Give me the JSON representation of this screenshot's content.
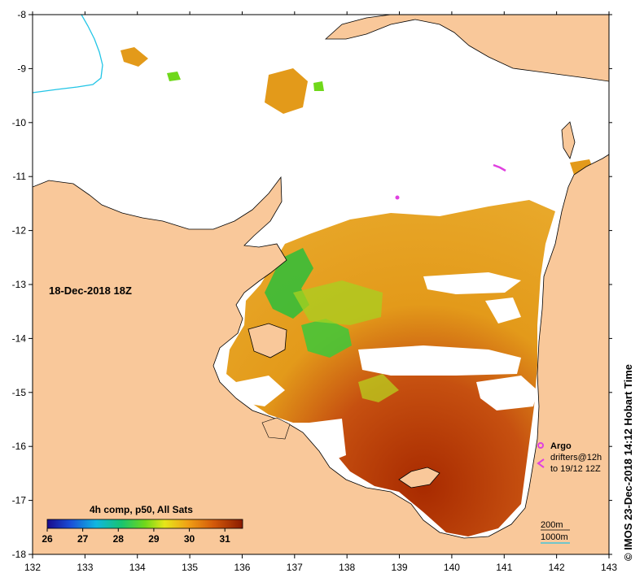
{
  "map": {
    "date_label": "18-Dec-2018 18Z",
    "credit": "© IMOS 23-Dec-2018 14:12 Hobart Time",
    "lon_ticks": [
      "132",
      "133",
      "134",
      "135",
      "136",
      "137",
      "138",
      "139",
      "140",
      "141",
      "142",
      "143"
    ],
    "lat_ticks": [
      "-8",
      "-9",
      "-10",
      "-11",
      "-12",
      "-13",
      "-14",
      "-15",
      "-16",
      "-17",
      "-18"
    ],
    "colorbar": {
      "title": "4h comp, p50, All Sats",
      "ticks": [
        "26",
        "27",
        "28",
        "29",
        "30",
        "31"
      ],
      "range": [
        26,
        31.5
      ]
    },
    "legend": {
      "argo_label": "Argo",
      "drifters_label": "drifters@12h",
      "drifters_range": "to 19/12 12Z"
    },
    "contours": {
      "line1": "200m",
      "line2": "1000m"
    },
    "colors": {
      "land": "#F9C89A",
      "warm": "#A82A00",
      "mid": "#E39A1A",
      "cool": "#2DBE3A",
      "argo": "#E040E0",
      "contour_1000": "#22C5E6"
    }
  }
}
